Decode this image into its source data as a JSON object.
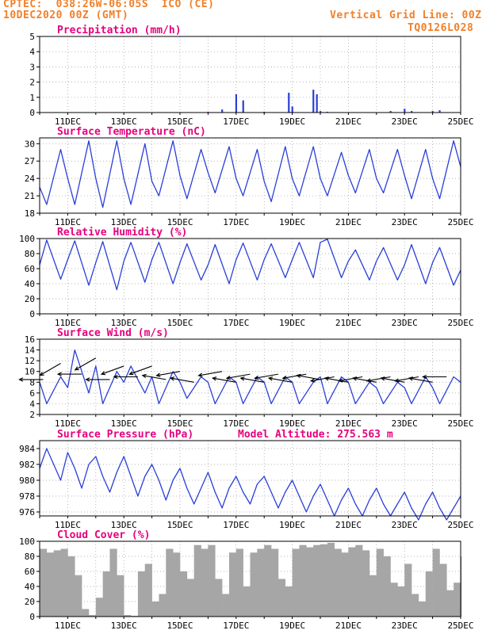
{
  "header": {
    "line1": "CPTEC:  038:26W-06:05S  ICO (CE)",
    "line2": "10DEC2020 00Z (GMT)",
    "right1": "Vertical Grid Line: 00Z",
    "right2": "TQ0126L028"
  },
  "colors": {
    "header": "#f0802a",
    "title": "#e6007e",
    "series": "#2a3fd8",
    "cloud": "#a6a6a6",
    "wind_arrow": "#000000",
    "grid": "#9a9a9a"
  },
  "x_axis": {
    "type": "time",
    "start": "10DEC2020 00Z",
    "end": "25DEC2020 00Z",
    "tick_labels": [
      "11DEC",
      "13DEC",
      "15DEC",
      "17DEC",
      "19DEC",
      "21DEC",
      "23DEC",
      "25DEC"
    ],
    "vertical_grid": "00Z"
  },
  "chart_data": [
    {
      "type": "bar",
      "title": "Precipitation (mm/h)",
      "ylim": [
        0,
        5
      ],
      "yticks": [
        "0",
        "1",
        "2",
        "3",
        "4",
        "5"
      ],
      "x": [
        "16DEC 00Z",
        "16DEC 12Z",
        "17DEC 00Z",
        "17DEC 06Z",
        "18DEC 00Z",
        "18DEC 21Z",
        "19DEC 00Z",
        "19DEC 18Z",
        "19DEC 21Z",
        "20DEC 00Z",
        "20DEC 06Z",
        "22DEC 12Z",
        "23DEC 00Z",
        "23DEC 06Z",
        "24DEC 00Z",
        "24DEC 06Z"
      ],
      "values": [
        0.05,
        0.2,
        1.2,
        0.8,
        0.05,
        1.3,
        0.4,
        1.5,
        1.2,
        0.1,
        0.05,
        0.1,
        0.25,
        0.1,
        0.1,
        0.15
      ]
    },
    {
      "type": "line",
      "title": "Surface Temperature (nC)",
      "ylim": [
        18,
        31
      ],
      "yticks": [
        "18",
        "21",
        "24",
        "27",
        "30"
      ],
      "x": [
        "10DEC 00Z",
        "10DEC 06Z",
        "10DEC 18Z",
        "11DEC 00Z",
        "11DEC 06Z",
        "11DEC 18Z",
        "12DEC 00Z",
        "12DEC 06Z",
        "12DEC 18Z",
        "13DEC 00Z",
        "13DEC 06Z",
        "13DEC 18Z",
        "14DEC 00Z",
        "14DEC 06Z",
        "14DEC 18Z",
        "15DEC 00Z",
        "15DEC 06Z",
        "15DEC 18Z",
        "16DEC 00Z",
        "16DEC 06Z",
        "16DEC 18Z",
        "17DEC 00Z",
        "17DEC 06Z",
        "17DEC 18Z",
        "18DEC 00Z",
        "18DEC 06Z",
        "18DEC 18Z",
        "19DEC 00Z",
        "19DEC 06Z",
        "19DEC 18Z",
        "20DEC 00Z",
        "20DEC 06Z",
        "20DEC 18Z",
        "21DEC 00Z",
        "21DEC 06Z",
        "21DEC 18Z",
        "22DEC 00Z",
        "22DEC 06Z",
        "22DEC 18Z",
        "23DEC 00Z",
        "23DEC 06Z",
        "23DEC 18Z",
        "24DEC 00Z",
        "24DEC 06Z",
        "24DEC 18Z",
        "25DEC 00Z"
      ],
      "values": [
        22.5,
        19.5,
        29.0,
        24.0,
        19.5,
        30.5,
        24.0,
        19.0,
        30.5,
        24.0,
        19.5,
        30.0,
        23.5,
        21.0,
        30.5,
        24.5,
        20.5,
        29.0,
        25.0,
        21.5,
        29.5,
        24.0,
        21.0,
        29.0,
        23.5,
        20.0,
        29.5,
        24.0,
        21.0,
        29.5,
        24.0,
        21.0,
        28.5,
        24.5,
        21.5,
        29.0,
        24.0,
        21.5,
        29.0,
        24.5,
        20.5,
        29.0,
        24.0,
        20.5,
        30.5,
        26.0
      ]
    },
    {
      "type": "line",
      "title": "Relative Humidity (%)",
      "ylim": [
        0,
        100
      ],
      "yticks": [
        "0",
        "20",
        "40",
        "60",
        "80",
        "100"
      ],
      "x": [
        "10DEC 00Z",
        "10DEC 06Z",
        "10DEC 18Z",
        "11DEC 00Z",
        "11DEC 06Z",
        "11DEC 18Z",
        "12DEC 00Z",
        "12DEC 06Z",
        "12DEC 18Z",
        "13DEC 00Z",
        "13DEC 06Z",
        "13DEC 18Z",
        "14DEC 00Z",
        "14DEC 06Z",
        "14DEC 18Z",
        "15DEC 00Z",
        "15DEC 06Z",
        "15DEC 18Z",
        "16DEC 00Z",
        "16DEC 06Z",
        "16DEC 18Z",
        "17DEC 00Z",
        "17DEC 06Z",
        "17DEC 18Z",
        "18DEC 00Z",
        "18DEC 06Z",
        "18DEC 18Z",
        "19DEC 00Z",
        "19DEC 06Z",
        "19DEC 18Z",
        "20DEC 00Z",
        "20DEC 06Z",
        "20DEC 18Z",
        "21DEC 00Z",
        "21DEC 06Z",
        "21DEC 18Z",
        "22DEC 00Z",
        "22DEC 06Z",
        "22DEC 18Z",
        "23DEC 00Z",
        "23DEC 06Z",
        "23DEC 18Z",
        "24DEC 00Z",
        "24DEC 06Z",
        "24DEC 18Z",
        "25DEC 00Z"
      ],
      "values": [
        65,
        98,
        46,
        72,
        97,
        38,
        68,
        96,
        32,
        70,
        95,
        42,
        72,
        95,
        40,
        68,
        93,
        45,
        65,
        92,
        40,
        72,
        94,
        45,
        72,
        93,
        48,
        72,
        95,
        48,
        95,
        99,
        48,
        70,
        85,
        45,
        70,
        88,
        45,
        65,
        92,
        40,
        68,
        88,
        38,
        58
      ]
    },
    {
      "type": "line",
      "title": "Surface Wind (m/s)",
      "ylim": [
        2,
        16
      ],
      "yticks": [
        "2",
        "4",
        "6",
        "8",
        "10",
        "12",
        "14",
        "16"
      ],
      "x": [
        "10DEC 00Z",
        "10DEC 06Z",
        "10DEC 18Z",
        "11DEC 00Z",
        "11DEC 06Z",
        "11DEC 18Z",
        "12DEC 00Z",
        "12DEC 06Z",
        "12DEC 18Z",
        "13DEC 00Z",
        "13DEC 06Z",
        "13DEC 18Z",
        "14DEC 00Z",
        "14DEC 06Z",
        "14DEC 18Z",
        "15DEC 00Z",
        "15DEC 06Z",
        "15DEC 18Z",
        "16DEC 00Z",
        "16DEC 06Z",
        "16DEC 18Z",
        "17DEC 00Z",
        "17DEC 06Z",
        "17DEC 18Z",
        "18DEC 00Z",
        "18DEC 06Z",
        "18DEC 18Z",
        "19DEC 00Z",
        "19DEC 06Z",
        "19DEC 18Z",
        "20DEC 00Z",
        "20DEC 06Z",
        "20DEC 18Z",
        "21DEC 00Z",
        "21DEC 06Z",
        "21DEC 18Z",
        "22DEC 00Z",
        "22DEC 06Z",
        "22DEC 18Z",
        "23DEC 00Z",
        "23DEC 06Z",
        "23DEC 18Z",
        "24DEC 00Z",
        "24DEC 06Z",
        "24DEC 18Z",
        "25DEC 00Z"
      ],
      "values": [
        8,
        4,
        9,
        7,
        14,
        6,
        11,
        4,
        10,
        8,
        11,
        6,
        9,
        4,
        10,
        8,
        5,
        9,
        8,
        4,
        9,
        8,
        4,
        9,
        8,
        4,
        9,
        8,
        4,
        8,
        9,
        4,
        9,
        8,
        4,
        8,
        7,
        4,
        8,
        7,
        4,
        9,
        7,
        4,
        9,
        8
      ],
      "arrows": {
        "x": [
          "10DEC 03Z",
          "10DEC 18Z",
          "11DEC 12Z",
          "12DEC 00Z",
          "12DEC 12Z",
          "13DEC 00Z",
          "13DEC 12Z",
          "14DEC 00Z",
          "14DEC 12Z",
          "15DEC 00Z",
          "15DEC 12Z",
          "16DEC 12Z",
          "17DEC 00Z",
          "17DEC 12Z",
          "18DEC 00Z",
          "18DEC 12Z",
          "19DEC 00Z",
          "19DEC 12Z",
          "20DEC 00Z",
          "20DEC 12Z",
          "21DEC 00Z",
          "21DEC 12Z",
          "22DEC 00Z",
          "22DEC 12Z",
          "23DEC 00Z",
          "23DEC 12Z",
          "24DEC 00Z",
          "24DEC 12Z"
        ],
        "speed": [
          8.5,
          11.5,
          9.5,
          12.5,
          8.5,
          11.0,
          9.0,
          11.0,
          8.5,
          10.0,
          8.0,
          10.0,
          8.0,
          9.5,
          8.0,
          9.5,
          8.0,
          9.5,
          8.5,
          9.0,
          8.0,
          9.0,
          8.0,
          9.0,
          8.0,
          9.0,
          8.0,
          9.0
        ],
        "dir_deg": [
          90,
          60,
          90,
          60,
          90,
          70,
          90,
          70,
          100,
          80,
          100,
          80,
          100,
          80,
          100,
          80,
          100,
          80,
          100,
          80,
          100,
          80,
          100,
          80,
          100,
          80,
          100,
          90
        ]
      }
    },
    {
      "type": "line",
      "title": "Surface Pressure (hPa)",
      "annotation": "Model Altitude: 275.563 m",
      "ylim": [
        975.5,
        985
      ],
      "yticks": [
        "976",
        "978",
        "980",
        "982",
        "984"
      ],
      "x": [
        "10DEC 00Z",
        "10DEC 06Z",
        "10DEC 12Z",
        "10DEC 18Z",
        "11DEC 00Z",
        "11DEC 06Z",
        "11DEC 12Z",
        "11DEC 18Z",
        "12DEC 00Z",
        "12DEC 06Z",
        "12DEC 12Z",
        "12DEC 18Z",
        "13DEC 00Z",
        "13DEC 06Z",
        "13DEC 12Z",
        "13DEC 18Z",
        "14DEC 00Z",
        "14DEC 06Z",
        "14DEC 12Z",
        "14DEC 18Z",
        "15DEC 00Z",
        "15DEC 06Z",
        "15DEC 12Z",
        "15DEC 18Z",
        "16DEC 00Z",
        "16DEC 06Z",
        "16DEC 12Z",
        "16DEC 18Z",
        "17DEC 00Z",
        "17DEC 06Z",
        "17DEC 12Z",
        "17DEC 18Z",
        "18DEC 00Z",
        "18DEC 06Z",
        "18DEC 12Z",
        "18DEC 18Z",
        "19DEC 00Z",
        "19DEC 06Z",
        "19DEC 12Z",
        "19DEC 18Z",
        "20DEC 00Z",
        "20DEC 06Z",
        "20DEC 12Z",
        "20DEC 18Z",
        "21DEC 00Z",
        "21DEC 06Z",
        "21DEC 12Z",
        "21DEC 18Z",
        "22DEC 00Z",
        "22DEC 06Z",
        "22DEC 12Z",
        "22DEC 18Z",
        "23DEC 00Z",
        "23DEC 06Z",
        "23DEC 12Z",
        "23DEC 18Z",
        "24DEC 00Z",
        "24DEC 06Z",
        "24DEC 12Z",
        "24DEC 18Z",
        "25DEC 00Z"
      ],
      "values": [
        981.5,
        984.0,
        982.0,
        980.0,
        983.5,
        981.5,
        979.0,
        982.0,
        983.0,
        980.5,
        978.5,
        981.0,
        983.0,
        980.5,
        978.0,
        980.5,
        982.0,
        980.0,
        977.5,
        980.0,
        981.5,
        979.0,
        977.0,
        979.0,
        981.0,
        978.5,
        976.5,
        979.0,
        980.5,
        978.5,
        977.0,
        979.5,
        980.5,
        978.5,
        976.5,
        978.5,
        980.0,
        978.0,
        976.0,
        978.0,
        979.5,
        977.5,
        975.5,
        977.5,
        979.0,
        977.0,
        975.5,
        977.5,
        979.0,
        977.0,
        975.5,
        977.0,
        978.5,
        976.5,
        975.0,
        977.0,
        978.5,
        976.5,
        975.0,
        976.5,
        978.0
      ]
    },
    {
      "type": "area",
      "title": "Cloud Cover (%)",
      "ylim": [
        0,
        100
      ],
      "yticks": [
        "0",
        "20",
        "40",
        "60",
        "80",
        "100"
      ],
      "x": [
        "10DEC 00Z",
        "10DEC 06Z",
        "10DEC 12Z",
        "10DEC 18Z",
        "11DEC 00Z",
        "11DEC 06Z",
        "11DEC 12Z",
        "11DEC 18Z",
        "12DEC 00Z",
        "12DEC 06Z",
        "12DEC 12Z",
        "12DEC 18Z",
        "13DEC 00Z",
        "13DEC 06Z",
        "13DEC 12Z",
        "13DEC 18Z",
        "14DEC 00Z",
        "14DEC 06Z",
        "14DEC 12Z",
        "14DEC 18Z",
        "15DEC 00Z",
        "15DEC 06Z",
        "15DEC 12Z",
        "15DEC 18Z",
        "16DEC 00Z",
        "16DEC 06Z",
        "16DEC 12Z",
        "16DEC 18Z",
        "17DEC 00Z",
        "17DEC 06Z",
        "17DEC 12Z",
        "17DEC 18Z",
        "18DEC 00Z",
        "18DEC 06Z",
        "18DEC 12Z",
        "18DEC 18Z",
        "19DEC 00Z",
        "19DEC 06Z",
        "19DEC 12Z",
        "19DEC 18Z",
        "20DEC 00Z",
        "20DEC 06Z",
        "20DEC 12Z",
        "20DEC 18Z",
        "21DEC 00Z",
        "21DEC 06Z",
        "21DEC 12Z",
        "21DEC 18Z",
        "22DEC 00Z",
        "22DEC 06Z",
        "22DEC 12Z",
        "22DEC 18Z",
        "23DEC 00Z",
        "23DEC 06Z",
        "23DEC 12Z",
        "23DEC 18Z",
        "24DEC 00Z",
        "24DEC 06Z",
        "24DEC 12Z",
        "24DEC 18Z",
        "25DEC 00Z"
      ],
      "values": [
        90,
        85,
        88,
        90,
        80,
        55,
        10,
        2,
        25,
        60,
        90,
        55,
        2,
        1,
        60,
        70,
        20,
        30,
        90,
        85,
        60,
        50,
        95,
        90,
        95,
        50,
        30,
        85,
        90,
        40,
        85,
        90,
        95,
        90,
        50,
        40,
        90,
        95,
        92,
        95,
        96,
        98,
        90,
        85,
        92,
        95,
        88,
        55,
        90,
        80,
        45,
        40,
        70,
        30,
        20,
        60,
        90,
        70,
        35,
        45,
        80
      ]
    }
  ]
}
